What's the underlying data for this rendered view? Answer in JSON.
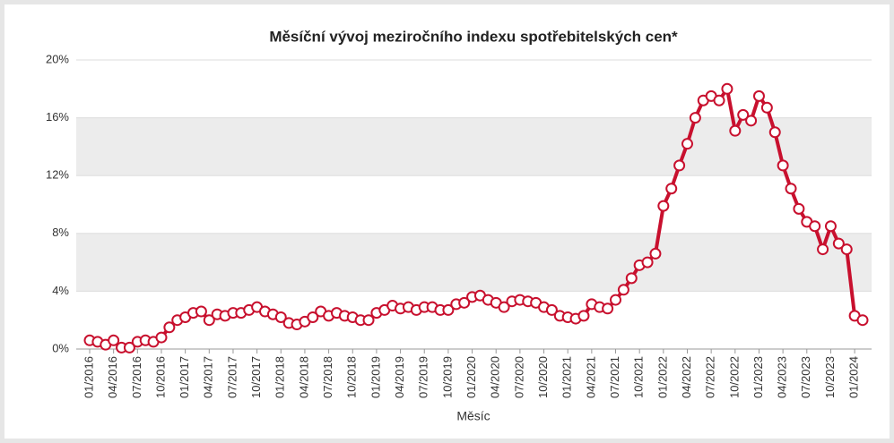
{
  "chart_data": {
    "type": "line",
    "title": "Měsíční vývoj meziročního indexu spotřebitelských cen*",
    "x_label": "Měsíc",
    "categories": [
      "01/2016",
      null,
      null,
      "04/2016",
      null,
      null,
      "07/2016",
      null,
      null,
      "10/2016",
      null,
      null,
      "01/2017",
      null,
      null,
      "04/2017",
      null,
      null,
      "07/2017",
      null,
      null,
      "10/2017",
      null,
      null,
      "01/2018",
      null,
      null,
      "04/2018",
      null,
      null,
      "07/2018",
      null,
      null,
      "10/2018",
      null,
      null,
      "01/2019",
      null,
      null,
      "04/2019",
      null,
      null,
      "07/2019",
      null,
      null,
      "10/2019",
      null,
      null,
      "01/2020",
      null,
      null,
      "04/2020",
      null,
      null,
      "07/2020",
      null,
      null,
      "10/2020",
      null,
      null,
      "01/2021",
      null,
      null,
      "04/2021",
      null,
      null,
      "07/2021",
      null,
      null,
      "10/2021",
      null,
      null,
      "01/2022",
      null,
      null,
      "04/2022",
      null,
      null,
      "07/2022",
      null,
      null,
      "10/2022",
      null,
      null,
      "01/2023",
      null,
      null,
      "04/2023",
      null,
      null,
      "07/2023",
      null,
      null,
      "10/2023",
      null,
      null,
      "01/2024",
      null
    ],
    "series": [
      {
        "color": "#c8102e",
        "values": [
          0.6,
          0.5,
          0.3,
          0.6,
          0.1,
          0.1,
          0.5,
          0.6,
          0.5,
          0.8,
          1.5,
          2.0,
          2.2,
          2.5,
          2.6,
          2.0,
          2.4,
          2.3,
          2.5,
          2.5,
          2.7,
          2.9,
          2.6,
          2.4,
          2.2,
          1.8,
          1.7,
          1.9,
          2.2,
          2.6,
          2.3,
          2.5,
          2.3,
          2.2,
          2.0,
          2.0,
          2.5,
          2.7,
          3.0,
          2.8,
          2.9,
          2.7,
          2.9,
          2.9,
          2.7,
          2.7,
          3.1,
          3.2,
          3.6,
          3.7,
          3.4,
          3.2,
          2.9,
          3.3,
          3.4,
          3.3,
          3.2,
          2.9,
          2.7,
          2.3,
          2.2,
          2.1,
          2.3,
          3.1,
          2.9,
          2.8,
          3.4,
          4.1,
          4.9,
          5.8,
          6.0,
          6.6,
          9.9,
          11.1,
          12.7,
          14.2,
          16.0,
          17.2,
          17.5,
          17.2,
          18.0,
          15.1,
          16.2,
          15.8,
          17.5,
          16.7,
          15.0,
          12.7,
          11.1,
          9.7,
          8.8,
          8.5,
          6.9,
          8.5,
          7.3,
          6.9,
          2.3,
          2.0
        ]
      }
    ],
    "ylim": [
      0,
      20
    ],
    "yticks": [
      {
        "value": 0,
        "label": "0%"
      },
      {
        "value": 4,
        "label": "4%"
      },
      {
        "value": 8,
        "label": "8%"
      },
      {
        "value": 12,
        "label": "12%"
      },
      {
        "value": 16,
        "label": "16%"
      },
      {
        "value": 20,
        "label": "20%"
      }
    ],
    "grid": true
  }
}
